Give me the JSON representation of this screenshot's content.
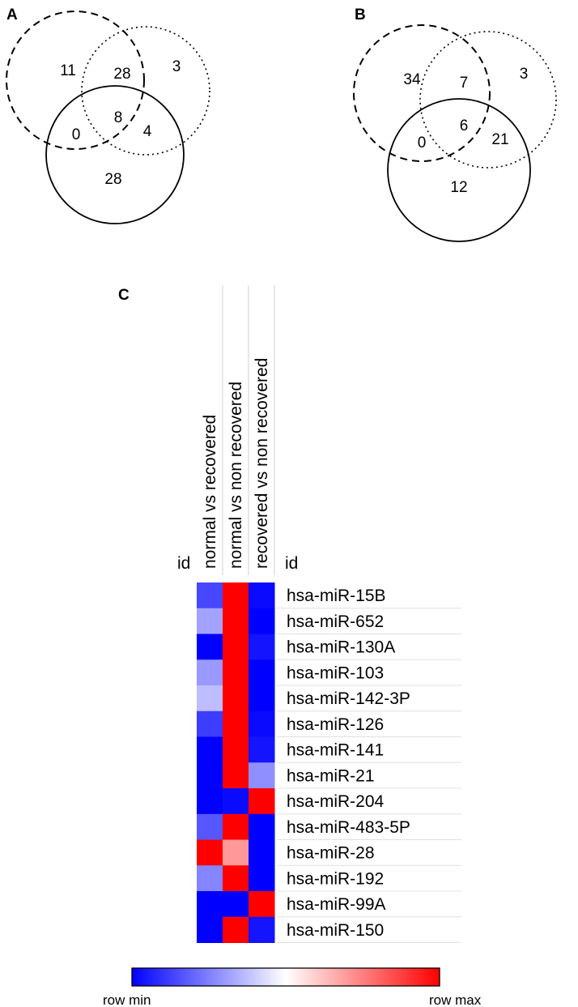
{
  "chart_data": [
    {
      "type": "venn",
      "panel_label": "A",
      "regions": {
        "dashed_only": 11,
        "dashed_dotted": 28,
        "dotted_only": 3,
        "dashed_solid": 0,
        "all_three": 8,
        "dotted_solid": 4,
        "solid_only": 28
      }
    },
    {
      "type": "venn",
      "panel_label": "B",
      "regions": {
        "dashed_only": 34,
        "dashed_dotted": 7,
        "dotted_only": 3,
        "dashed_solid": 0,
        "all_three": 6,
        "dotted_solid": 21,
        "solid_only": 12
      }
    },
    {
      "type": "heatmap",
      "panel_label": "C",
      "corner_label": "id",
      "row_header": "id",
      "columns": [
        "normal vs recovered",
        "normal vs non recovered",
        "recovered vs non recovered"
      ],
      "rows": [
        "hsa-miR-15B",
        "hsa-miR-652",
        "hsa-miR-130A",
        "hsa-miR-103",
        "hsa-miR-142-3P",
        "hsa-miR-126",
        "hsa-miR-141",
        "hsa-miR-21",
        "hsa-miR-204",
        "hsa-miR-483-5P",
        "hsa-miR-28",
        "hsa-miR-192",
        "hsa-miR-99A",
        "hsa-miR-150"
      ],
      "values": [
        [
          0.14,
          1.0,
          0.02
        ],
        [
          0.32,
          1.0,
          0.0
        ],
        [
          0.0,
          1.0,
          0.04
        ],
        [
          0.3,
          1.0,
          0.0
        ],
        [
          0.37,
          1.0,
          0.0
        ],
        [
          0.12,
          1.0,
          0.02
        ],
        [
          0.0,
          1.0,
          0.04
        ],
        [
          0.0,
          1.0,
          0.28
        ],
        [
          0.0,
          0.02,
          1.0
        ],
        [
          0.17,
          1.0,
          0.0
        ],
        [
          1.0,
          0.7,
          0.0
        ],
        [
          0.26,
          1.0,
          0.0
        ],
        [
          0.0,
          0.0,
          1.0
        ],
        [
          0.0,
          1.0,
          0.04
        ]
      ],
      "scale": "row-normalized",
      "legend": {
        "min_label": "row min",
        "max_label": "row max",
        "colors": [
          "#0000ff",
          "#ffffff",
          "#ff0000"
        ]
      }
    }
  ]
}
